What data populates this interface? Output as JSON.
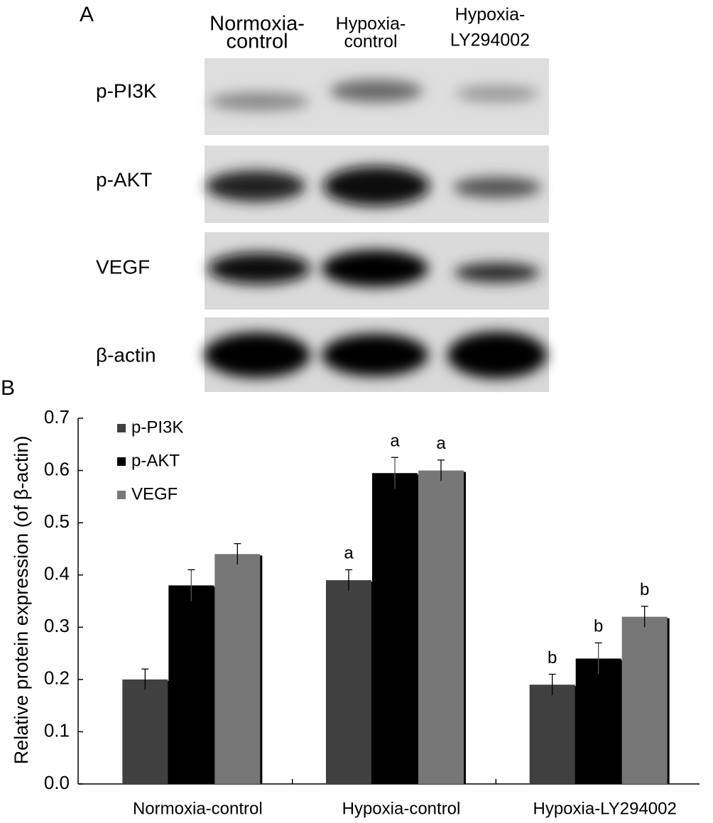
{
  "panel_a": {
    "label": "A",
    "lanes": [
      [
        "Normoxia-",
        "control"
      ],
      [
        "Hypoxia-",
        "control"
      ],
      [
        "Hypoxia-",
        "LY294002"
      ]
    ],
    "bands": [
      "p-PI3K",
      "p-AKT",
      "VEGF",
      "β-actin"
    ]
  },
  "chart_data": {
    "type": "bar",
    "panel_label": "B",
    "ylabel": "Relative protein expression (of β-actin)",
    "categories": [
      "Normoxia-control",
      "Hypoxia-control",
      "Hypoxia-LY294002"
    ],
    "series": [
      {
        "name": "p-PI3K",
        "color": "#404040",
        "values": [
          0.2,
          0.39,
          0.19
        ],
        "errors": [
          0.02,
          0.02,
          0.02
        ],
        "annotations": [
          null,
          "a",
          "b"
        ]
      },
      {
        "name": "p-AKT",
        "color": "#000000",
        "values": [
          0.38,
          0.595,
          0.24
        ],
        "errors": [
          0.03,
          0.03,
          0.03
        ],
        "annotations": [
          null,
          "a",
          "b"
        ]
      },
      {
        "name": "VEGF",
        "color": "#777777",
        "values": [
          0.44,
          0.6,
          0.32
        ],
        "errors": [
          0.02,
          0.02,
          0.02
        ],
        "annotations": [
          null,
          "a",
          "b"
        ]
      }
    ],
    "ylim": [
      0,
      0.7
    ],
    "yticks": [
      {
        "value": 0,
        "label": "0.0"
      },
      0.1,
      0.2,
      0.3,
      0.4,
      0.5,
      0.6,
      0.7
    ],
    "legend": "top-left",
    "grid": false
  }
}
